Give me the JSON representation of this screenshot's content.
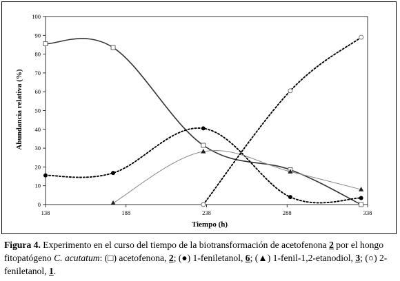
{
  "chart_data": {
    "type": "line",
    "xlabel": "Tiempo (h)",
    "ylabel": "Abundancia relativa (%)",
    "xlim": [
      138,
      338
    ],
    "ylim": [
      0,
      100
    ],
    "xticks": [
      138,
      188,
      238,
      288,
      338
    ],
    "yticks": [
      0,
      10,
      20,
      30,
      40,
      50,
      60,
      70,
      80,
      90,
      100
    ],
    "grid": false,
    "legend": "none",
    "series": [
      {
        "marker": "open-square",
        "style": "solid",
        "color": "#333333",
        "x": [
          138,
          180,
          236,
          290,
          334
        ],
        "y": [
          85.5,
          83.5,
          31.5,
          18.5,
          0
        ]
      },
      {
        "marker": "filled-circle",
        "style": "dotted",
        "color": "#000000",
        "x": [
          138,
          180,
          236,
          290,
          334
        ],
        "y": [
          15.5,
          16.8,
          40.5,
          4,
          3.5
        ]
      },
      {
        "marker": "filled-triangle",
        "style": "solid-thin",
        "color": "#888888",
        "x": [
          180,
          236,
          290,
          334
        ],
        "y": [
          0.8,
          28.2,
          17.5,
          8
        ]
      },
      {
        "marker": "open-circle",
        "style": "dotted",
        "color": "#000000",
        "x": [
          236,
          290,
          334
        ],
        "y": [
          0,
          60.5,
          89
        ]
      }
    ]
  },
  "caption": {
    "figure_label": "Figura 4.",
    "text_1": " Experimento en el curso del tiempo de la biotransformación de acetofenona ",
    "compound_2": "2",
    "text_2": " por el hongo fitopatógeno ",
    "species": "C. acutatum",
    "text_3": ": (",
    "sym_square": "□",
    "text_4": ") acetofenona, ",
    "ref_2": "2",
    "text_5": "; (",
    "sym_dot": "●",
    "text_6": ") 1-feniletanol, ",
    "ref_6": "6",
    "text_7": "; (",
    "sym_triangle": "▲",
    "text_8": ") 1-fenil-1,2-etanodiol, ",
    "ref_3": "3",
    "text_9": "; (",
    "sym_circle": "○",
    "text_10": ") 2-feniletanol, ",
    "ref_1": "1",
    "text_11": "."
  }
}
